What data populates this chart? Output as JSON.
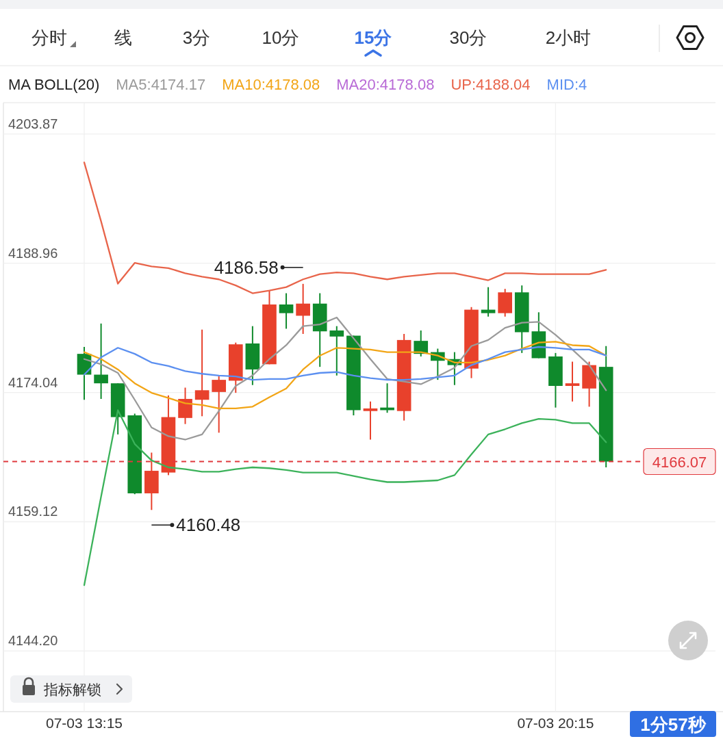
{
  "chart_data": {
    "type": "candlestick",
    "legend_title": "MA BOLL(20)",
    "legend": "top",
    "grid": true,
    "categories": [
      "07-03 13:15",
      null,
      null,
      null,
      null,
      null,
      null,
      null,
      null,
      null,
      null,
      null,
      null,
      null,
      null,
      null,
      null,
      null,
      null,
      null,
      null,
      null,
      null,
      null,
      null,
      null,
      null,
      null,
      "07-03 20:15",
      null,
      null,
      null
    ],
    "ylim": [
      4137.2,
      4207.5
    ],
    "yticks": [
      4203.87,
      4188.96,
      4174.04,
      4159.12,
      {
        "value": 4144.2,
        "label": "4144.20"
      }
    ],
    "ohlc": [
      [
        4178.5,
        4179.3,
        4173.2,
        4176.1
      ],
      [
        4176.1,
        4182.0,
        4173.3,
        4175.1
      ],
      [
        4175.1,
        4175.1,
        4169.2,
        4171.2
      ],
      [
        4171.4,
        4171.6,
        4162.3,
        4162.4
      ],
      [
        4162.4,
        4167.1,
        4160.48,
        4165.0
      ],
      [
        4164.8,
        4173.7,
        4164.5,
        4171.2
      ],
      [
        4171.1,
        4174.6,
        4170.4,
        4173.3
      ],
      [
        4173.2,
        4181.3,
        4171.3,
        4174.3
      ],
      [
        4174.1,
        4175.9,
        4169.4,
        4175.5
      ],
      [
        4175.4,
        4179.8,
        4174.0,
        4179.6
      ],
      [
        4179.7,
        4181.7,
        4174.9,
        4176.7
      ],
      [
        4177.3,
        4185.8,
        4177.3,
        4184.2
      ],
      [
        4184.2,
        4185.5,
        4181.4,
        4183.2
      ],
      [
        4182.9,
        4186.58,
        4180.8,
        4184.3
      ],
      [
        4184.3,
        4185.5,
        4177.0,
        4181.1
      ],
      [
        4181.2,
        4181.7,
        4176.0,
        4180.5
      ],
      [
        4180.6,
        4180.6,
        4171.4,
        4172.0
      ],
      [
        4171.9,
        4173.0,
        4168.6,
        4172.2
      ],
      [
        4172.3,
        4175.1,
        4171.7,
        4172.0
      ],
      [
        4171.9,
        4180.8,
        4170.8,
        4180.1
      ],
      [
        4180.0,
        4181.2,
        4178.2,
        4178.5
      ],
      [
        4178.7,
        4179.1,
        4175.5,
        4177.7
      ],
      [
        4177.9,
        4178.7,
        4174.9,
        4177.2
      ],
      [
        4176.8,
        4183.9,
        4175.7,
        4183.6
      ],
      [
        4183.6,
        4186.2,
        4182.8,
        4183.2
      ],
      [
        4183.2,
        4186.0,
        4182.8,
        4185.6
      ],
      [
        4185.6,
        4186.4,
        4178.6,
        4181.0
      ],
      [
        4181.1,
        4183.3,
        4178.0,
        4178.0
      ],
      [
        4178.2,
        4178.6,
        4172.3,
        4174.8
      ],
      [
        4174.8,
        4177.6,
        4173.0,
        4175.1
      ],
      [
        4174.5,
        4177.6,
        4172.4,
        4177.2
      ],
      [
        4177.0,
        4179.4,
        4165.4,
        4166.07
      ]
    ],
    "colors": [
      "#0f8a2c",
      "#0f8a2c",
      "#0f8a2c",
      "#0f8a2c",
      "#e8412c",
      "#e8412c",
      "#e8412c",
      "#e8412c",
      "#e8412c",
      "#e8412c",
      "#0f8a2c",
      "#e8412c",
      "#0f8a2c",
      "#e8412c",
      "#0f8a2c",
      "#0f8a2c",
      "#0f8a2c",
      "#e8412c",
      "#0f8a2c",
      "#e8412c",
      "#0f8a2c",
      "#0f8a2c",
      "#0f8a2c",
      "#e8412c",
      "#0f8a2c",
      "#e8412c",
      "#0f8a2c",
      "#0f8a2c",
      "#0f8a2c",
      "#e8412c",
      "#e8412c",
      "#0f8a2c"
    ],
    "series": [
      {
        "type": "line",
        "name": "MA5:4174.17",
        "color": "#9a9a9a",
        "values": [
          4177.9,
          4177.3,
          4176.3,
          4173.2,
          4170.0,
          4169.0,
          4168.6,
          4169.2,
          4171.9,
          4174.8,
          4176.0,
          4177.9,
          4179.5,
          4181.7,
          4181.9,
          4182.7,
          4180.3,
          4177.9,
          4175.6,
          4175.3,
          4175.0,
          4175.9,
          4176.9,
          4179.4,
          4180.1,
          4181.5,
          4182.1,
          4182.2,
          4180.7,
          4179.0,
          4177.2,
          4174.3
        ]
      },
      {
        "type": "line",
        "name": "MA10:4178.08",
        "color": "#f2a516",
        "values": [
          4178.7,
          4177.9,
          4176.7,
          4175.1,
          4174.0,
          4173.4,
          4172.8,
          4172.6,
          4172.2,
          4172.2,
          4172.4,
          4173.5,
          4174.5,
          4176.7,
          4178.3,
          4179.2,
          4179.1,
          4179.0,
          4178.7,
          4178.7,
          4178.7,
          4178.3,
          4177.5,
          4177.5,
          4177.8,
          4178.3,
          4179.1,
          4179.8,
          4179.9,
          4179.5,
          4179.4,
          4178.3
        ]
      },
      {
        "type": "line",
        "name": "MA20:4178.08",
        "color": "#b86ad6",
        "values": [
          null,
          null,
          null,
          null,
          null,
          null,
          null,
          null,
          null,
          null,
          null,
          null,
          null,
          null,
          null,
          null,
          null,
          null,
          null,
          null,
          null,
          null,
          null,
          null,
          null,
          null,
          null,
          null,
          null,
          null,
          null,
          null
        ]
      },
      {
        "type": "line",
        "name": "UP:4188.04",
        "color": "#e8644a",
        "values": [
          4200.6,
          4193.8,
          4186.6,
          4189.0,
          4188.6,
          4188.4,
          4187.8,
          4187.4,
          4187.1,
          4186.4,
          4185.5,
          4185.8,
          4186.2,
          4187.1,
          4187.7,
          4187.9,
          4187.8,
          4187.4,
          4187.1,
          4187.4,
          4187.6,
          4187.8,
          4187.8,
          4187.4,
          4187.0,
          4187.8,
          4187.8,
          4187.7,
          4187.7,
          4187.7,
          4187.7,
          4188.2
        ]
      },
      {
        "type": "line",
        "name": "MID:4",
        "color": "#5b8ff0",
        "values": [
          4176.1,
          4178.1,
          4179.2,
          4178.5,
          4177.5,
          4177.1,
          4176.5,
          4176.2,
          4176.0,
          4175.9,
          4175.5,
          4175.6,
          4175.6,
          4176.0,
          4176.3,
          4176.4,
          4176.0,
          4175.7,
          4175.5,
          4175.5,
          4175.6,
          4175.8,
          4176.0,
          4177.2,
          4177.9,
          4178.7,
          4179.0,
          4179.3,
          4179.2,
          4179.0,
          4179.0,
          4178.3
        ]
      },
      {
        "type": "line",
        "color": "#3bb25a",
        "values": [
          4151.8,
          4162.0,
          4172.0,
          4168.1,
          4166.2,
          4165.4,
          4165.2,
          4164.9,
          4164.9,
          4165.2,
          4165.4,
          4165.3,
          4165.1,
          4164.8,
          4164.8,
          4164.8,
          4164.4,
          4164.0,
          4163.7,
          4163.7,
          4163.8,
          4163.9,
          4164.5,
          4166.9,
          4169.2,
          4169.8,
          4170.5,
          4171.0,
          4170.9,
          4170.5,
          4170.5,
          4168.3
        ]
      }
    ],
    "ref_lines": [
      {
        "axis": "y",
        "value": 4166.07,
        "label": "4166.07",
        "color": "#e0393e",
        "line_style": "dashed"
      }
    ],
    "annotations": [
      "分时",
      "线",
      "3分",
      "10分",
      "15分",
      "30分",
      "2小时",
      "4186.58",
      "4160.48",
      "指标解锁",
      "1分57秒"
    ]
  }
}
